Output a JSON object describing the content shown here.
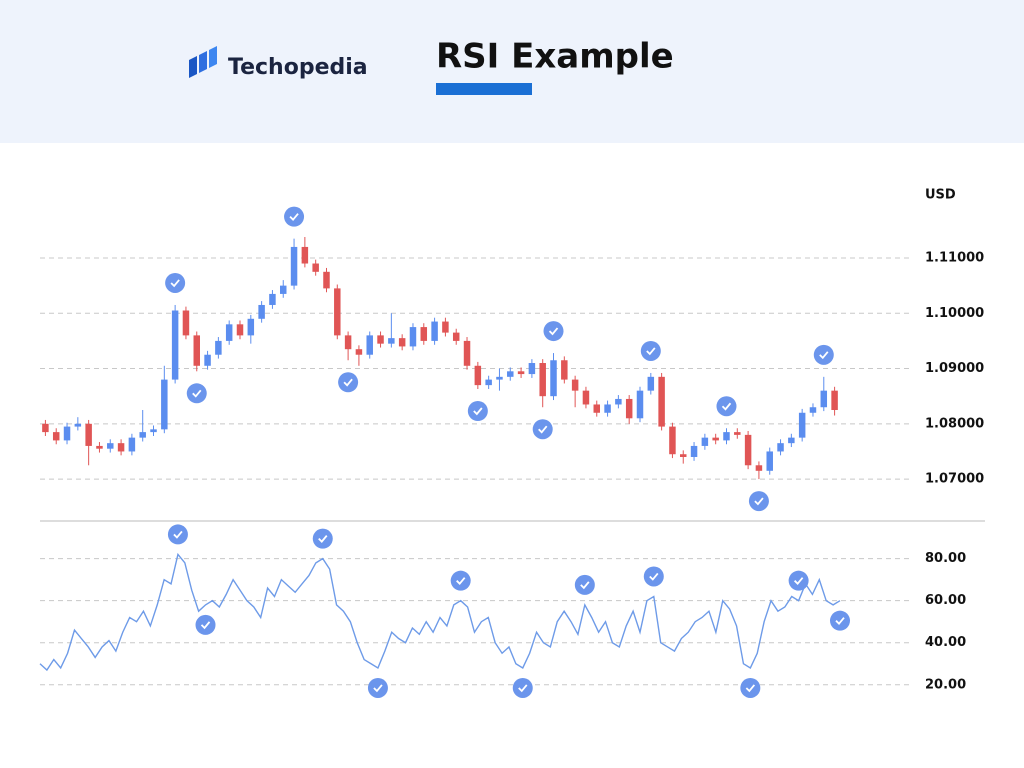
{
  "header": {
    "brand": "Techopedia",
    "title": "RSI Example"
  },
  "chart_data": [
    {
      "type": "candlestick",
      "ylabel": "USD",
      "up_color": "#5b8def",
      "down_color": "#e05555",
      "grid": true,
      "ylim": [
        1.0626,
        1.1223
      ],
      "yticks": [
        {
          "value": 1.07,
          "label": "1.07000"
        },
        {
          "value": 1.08,
          "label": "1.08000"
        },
        {
          "value": 1.09,
          "label": "1.09000"
        },
        {
          "value": 1.1,
          "label": "1.10000"
        },
        {
          "value": 1.11,
          "label": "1.11000"
        }
      ],
      "open": [
        1.08,
        1.0785,
        1.077,
        1.0795,
        1.08,
        1.076,
        1.0755,
        1.0765,
        1.075,
        1.0775,
        1.0785,
        1.079,
        1.088,
        1.1005,
        1.096,
        1.0905,
        1.0925,
        1.095,
        1.098,
        1.096,
        1.099,
        1.1015,
        1.1035,
        1.105,
        1.112,
        1.109,
        1.1075,
        1.1045,
        1.096,
        1.0935,
        1.0925,
        1.096,
        1.0945,
        1.0955,
        1.094,
        1.0975,
        1.095,
        1.0985,
        1.0965,
        1.095,
        1.0905,
        1.087,
        1.088,
        1.0885,
        1.0895,
        1.089,
        1.091,
        1.085,
        1.0915,
        1.088,
        1.086,
        1.0835,
        1.082,
        1.0835,
        1.0845,
        1.081,
        1.086,
        1.0885,
        1.0795,
        1.0745,
        1.074,
        1.076,
        1.0775,
        1.077,
        1.0785,
        1.078,
        1.0725,
        1.0715,
        1.075,
        1.0765,
        1.0775,
        1.082,
        1.083,
        1.086
      ],
      "high": [
        1.0807,
        1.0792,
        1.0802,
        1.0812,
        1.0807,
        1.0767,
        1.0772,
        1.0772,
        1.0782,
        1.0825,
        1.0797,
        1.0905,
        1.1015,
        1.1012,
        1.0967,
        1.0932,
        1.0957,
        1.0987,
        1.0987,
        1.0997,
        1.1022,
        1.1042,
        1.106,
        1.1135,
        1.1138,
        1.1097,
        1.1082,
        1.1052,
        1.0967,
        1.0942,
        1.0967,
        1.0967,
        1.1,
        1.0962,
        1.0982,
        1.0982,
        1.0992,
        1.0992,
        1.0972,
        1.0957,
        1.0912,
        1.0887,
        1.09,
        1.0902,
        1.0902,
        1.0917,
        1.0917,
        1.0928,
        1.0922,
        1.0887,
        1.0867,
        1.0842,
        1.0842,
        1.0852,
        1.0852,
        1.0867,
        1.0892,
        1.0892,
        1.0802,
        1.0752,
        1.0767,
        1.0782,
        1.0782,
        1.0792,
        1.0792,
        1.0787,
        1.0732,
        1.0757,
        1.0772,
        1.0782,
        1.0827,
        1.0837,
        1.0885,
        1.0867
      ],
      "low": [
        1.0778,
        1.0763,
        1.0763,
        1.0788,
        1.0725,
        1.0748,
        1.0748,
        1.0743,
        1.0743,
        1.0768,
        1.0778,
        1.0783,
        1.0873,
        1.0953,
        1.0895,
        1.0898,
        1.0918,
        1.0943,
        1.0953,
        1.0945,
        1.0983,
        1.1008,
        1.1028,
        1.1043,
        1.1083,
        1.1068,
        1.1038,
        1.0953,
        1.0915,
        1.0905,
        1.0918,
        1.0938,
        1.0938,
        1.0933,
        1.0933,
        1.0943,
        1.0943,
        1.0958,
        1.0943,
        1.0898,
        1.0863,
        1.0863,
        1.086,
        1.0878,
        1.0883,
        1.0883,
        1.083,
        1.0843,
        1.0873,
        1.083,
        1.0828,
        1.0813,
        1.0813,
        1.0828,
        1.08,
        1.0803,
        1.0853,
        1.0788,
        1.0738,
        1.0728,
        1.0733,
        1.0753,
        1.0763,
        1.0763,
        1.0773,
        1.0718,
        1.07,
        1.0708,
        1.0743,
        1.0758,
        1.0768,
        1.0813,
        1.0823,
        1.0815
      ],
      "close": [
        1.0785,
        1.077,
        1.0795,
        1.08,
        1.076,
        1.0755,
        1.0765,
        1.075,
        1.0775,
        1.0785,
        1.079,
        1.088,
        1.1005,
        1.096,
        1.0905,
        1.0925,
        1.095,
        1.098,
        1.096,
        1.099,
        1.1015,
        1.1035,
        1.105,
        1.112,
        1.109,
        1.1075,
        1.1045,
        1.096,
        1.0935,
        1.0925,
        1.096,
        1.0945,
        1.0955,
        1.094,
        1.0975,
        1.095,
        1.0985,
        1.0965,
        1.095,
        1.0905,
        1.087,
        1.088,
        1.0885,
        1.0895,
        1.089,
        1.091,
        1.085,
        1.0915,
        1.088,
        1.086,
        1.0835,
        1.082,
        1.0835,
        1.0845,
        1.081,
        1.086,
        1.0885,
        1.0795,
        1.0745,
        1.074,
        1.076,
        1.0775,
        1.077,
        1.0785,
        1.078,
        1.0725,
        1.0715,
        1.075,
        1.0765,
        1.0775,
        1.082,
        1.083,
        1.086,
        1.0825
      ]
    },
    {
      "type": "line",
      "color": "#6e9be8",
      "grid": true,
      "ylim": [
        8,
        96
      ],
      "yticks": [
        {
          "value": 20,
          "label": "20.00"
        },
        {
          "value": 40,
          "label": "40.00"
        },
        {
          "value": 60,
          "label": "60.00"
        },
        {
          "value": 80,
          "label": "80.00"
        }
      ],
      "values": [
        30,
        27,
        32,
        28,
        35,
        46,
        42,
        38,
        33,
        38,
        41,
        36,
        45,
        52,
        50,
        55,
        48,
        58,
        70,
        68,
        82,
        78,
        65,
        55,
        58,
        60,
        57,
        63,
        70,
        65,
        60,
        57,
        52,
        66,
        62,
        70,
        67,
        64,
        68,
        72,
        78,
        80,
        75,
        58,
        55,
        50,
        40,
        32,
        30,
        28,
        36,
        45,
        42,
        40,
        47,
        44,
        50,
        45,
        52,
        48,
        58,
        60,
        57,
        45,
        50,
        52,
        40,
        35,
        38,
        30,
        28,
        35,
        45,
        40,
        38,
        50,
        55,
        50,
        44,
        58,
        52,
        45,
        50,
        40,
        38,
        48,
        55,
        45,
        60,
        62,
        40,
        38,
        36,
        42,
        45,
        50,
        52,
        55,
        45,
        60,
        56,
        48,
        30,
        28,
        35,
        50,
        60,
        55,
        57,
        62,
        60,
        68,
        63,
        70,
        60,
        58,
        60
      ]
    }
  ]
}
